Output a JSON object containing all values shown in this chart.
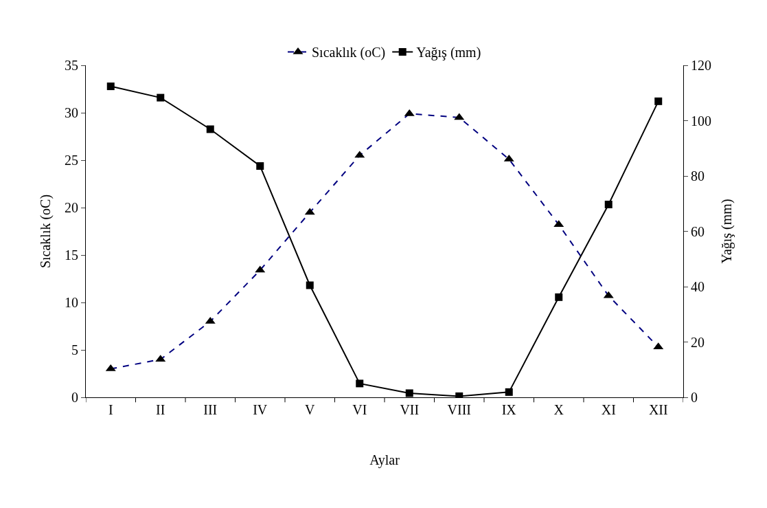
{
  "chart_data": {
    "type": "line",
    "xlabel": "Aylar",
    "ylabel": "Sıcaklık (oC)",
    "y2label": "Yağış (mm)",
    "categories": [
      "I",
      "II",
      "III",
      "IV",
      "V",
      "VI",
      "VII",
      "VIII",
      "IX",
      "X",
      "XI",
      "XII"
    ],
    "series": [
      {
        "name": "Sıcaklık (oC)",
        "color": "#000080",
        "marker": "triangle",
        "line_style": "dashed",
        "values": [
          3.0,
          4.0,
          8.0,
          13.4,
          19.5,
          25.5,
          29.9,
          29.5,
          25.1,
          18.2,
          10.7,
          5.3
        ]
      },
      {
        "name": "Yağış (mm)",
        "color": "#000000",
        "marker": "square",
        "line_style": "solid",
        "axis": "y2",
        "values": [
          112.4,
          108.3,
          96.9,
          83.6,
          40.5,
          5.0,
          1.5,
          0.4,
          1.9,
          36.2,
          69.7,
          107.0
        ]
      }
    ],
    "ylim": [
      0,
      35
    ],
    "yticks": [
      0,
      5,
      10,
      15,
      20,
      25,
      30,
      35
    ],
    "y2lim": [
      0,
      120
    ],
    "y2ticks": [
      0,
      20,
      40,
      60,
      80,
      100,
      120
    ],
    "legend": "top"
  }
}
